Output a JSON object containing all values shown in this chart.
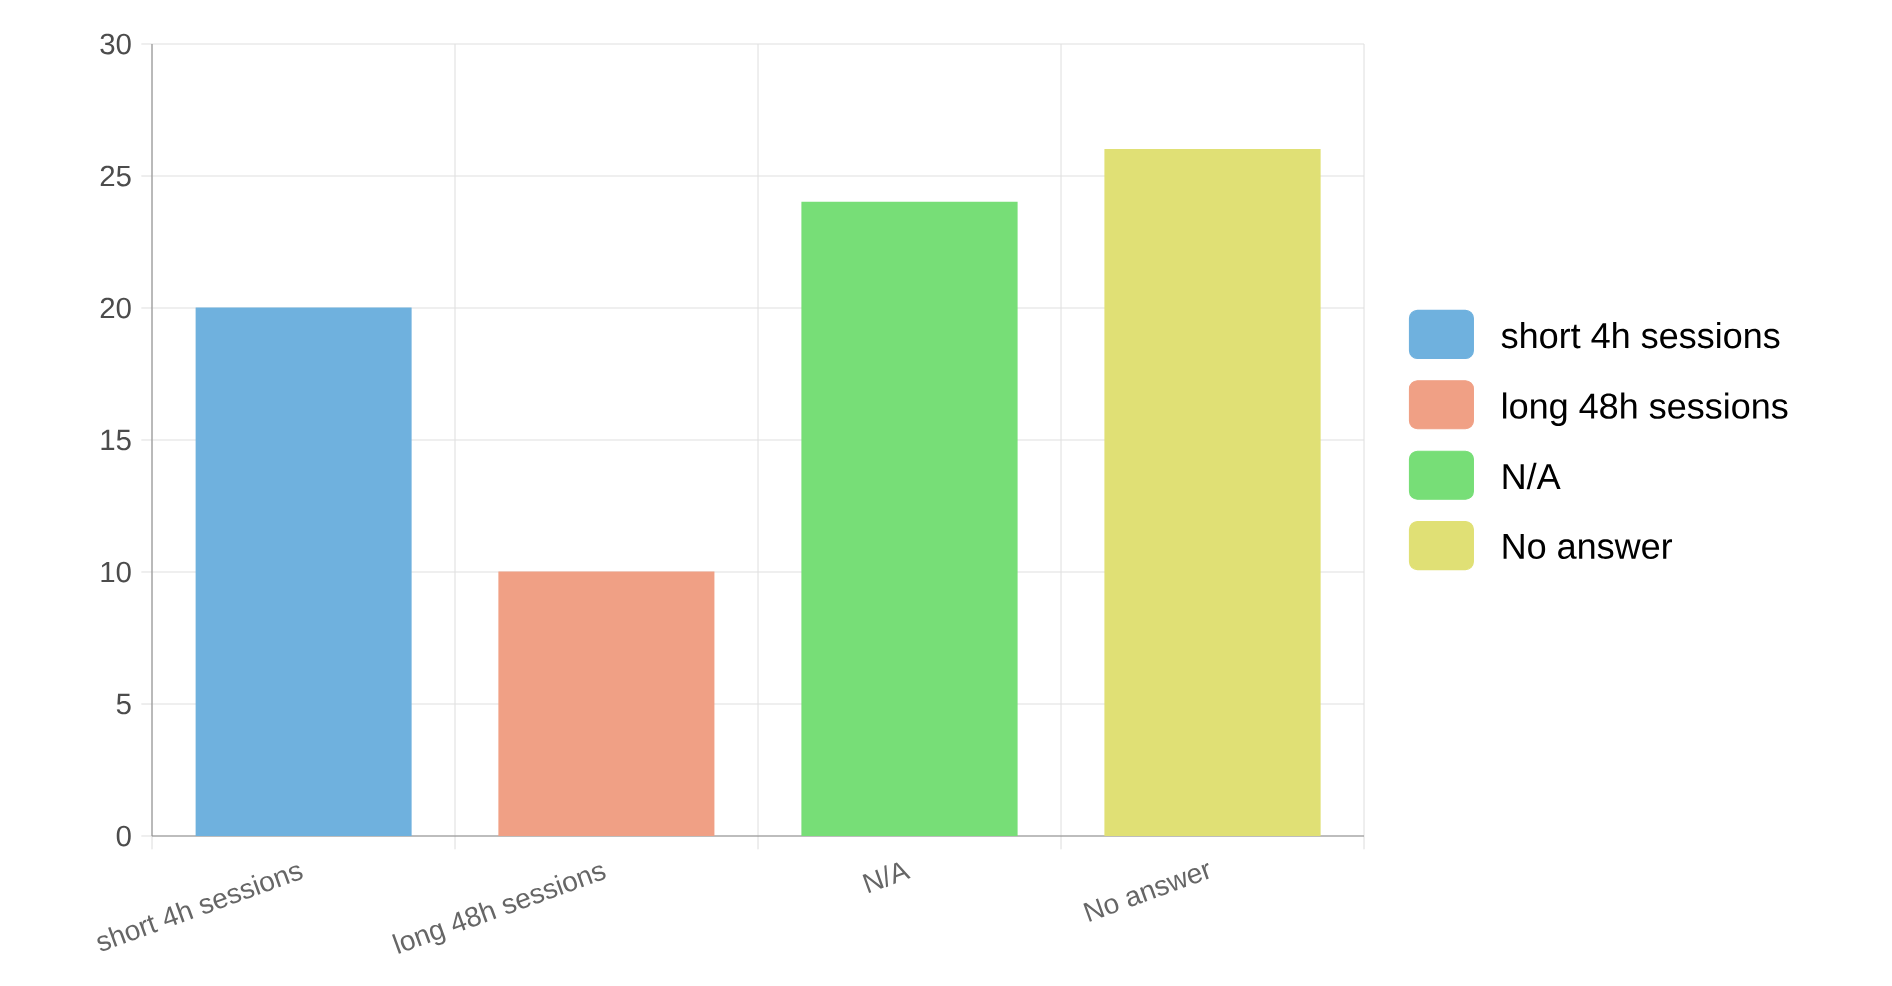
{
  "chart_data": {
    "type": "bar",
    "categories": [
      "short 4h sessions",
      "long 48h sessions",
      "N/A",
      "No answer"
    ],
    "series": [
      {
        "name": "short 4h sessions",
        "color": "#6fb1de",
        "values": [
          20,
          null,
          null,
          null
        ]
      },
      {
        "name": "long 48h sessions",
        "color": "#f0a085",
        "values": [
          null,
          10,
          null,
          null
        ]
      },
      {
        "name": "N/A",
        "color": "#77de77",
        "values": [
          null,
          null,
          24,
          null
        ]
      },
      {
        "name": "No answer",
        "color": "#e0e075",
        "values": [
          null,
          null,
          null,
          26
        ]
      }
    ],
    "ylim": [
      0,
      30
    ],
    "yticks": [
      0,
      5,
      10,
      15,
      20,
      25,
      30
    ],
    "grid": true,
    "legend": "right"
  }
}
